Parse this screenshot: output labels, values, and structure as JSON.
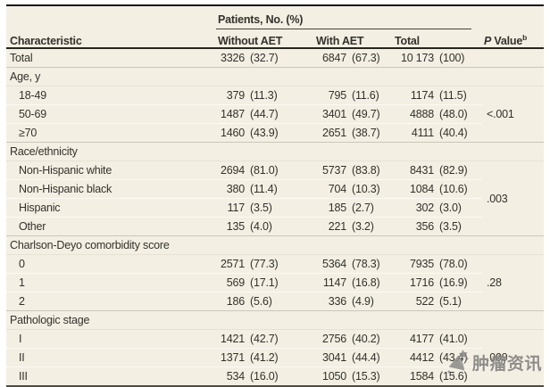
{
  "table": {
    "span_header": "Patients, No. (%)",
    "columns": {
      "characteristic": "Characteristic",
      "without": "Without AET",
      "with": "With AET",
      "total": "Total",
      "p_italic": "P",
      "p_rest": " Value",
      "p_sup": "b"
    },
    "total_row": {
      "label": "Total",
      "without": [
        "3326",
        "(32.7)"
      ],
      "with": [
        "6847",
        "(67.3)"
      ],
      "total": [
        "10 173",
        "(100)"
      ],
      "p": ""
    },
    "groups": [
      {
        "section": "Age, y",
        "p": "<.001",
        "rows": [
          {
            "label": "18-49",
            "without": [
              "379",
              "(11.3)"
            ],
            "with": [
              "795",
              "(11.6)"
            ],
            "total": [
              "1174",
              "(11.5)"
            ]
          },
          {
            "label": "50-69",
            "without": [
              "1487",
              "(44.7)"
            ],
            "with": [
              "3401",
              "(49.7)"
            ],
            "total": [
              "4888",
              "(48.0)"
            ]
          },
          {
            "label": "≥70",
            "without": [
              "1460",
              "(43.9)"
            ],
            "with": [
              "2651",
              "(38.7)"
            ],
            "total": [
              "4111",
              "(40.4)"
            ]
          }
        ]
      },
      {
        "section": "Race/ethnicity",
        "p": ".003",
        "rows": [
          {
            "label": "Non-Hispanic white",
            "without": [
              "2694",
              "(81.0)"
            ],
            "with": [
              "5737",
              "(83.8)"
            ],
            "total": [
              "8431",
              "(82.9)"
            ]
          },
          {
            "label": "Non-Hispanic black",
            "without": [
              "380",
              "(11.4)"
            ],
            "with": [
              "704",
              "(10.3)"
            ],
            "total": [
              "1084",
              "(10.6)"
            ]
          },
          {
            "label": "Hispanic",
            "without": [
              "117",
              "(3.5)"
            ],
            "with": [
              "185",
              "(2.7)"
            ],
            "total": [
              "302",
              "(3.0)"
            ]
          },
          {
            "label": "Other",
            "without": [
              "135",
              "(4.0)"
            ],
            "with": [
              "221",
              "(3.2)"
            ],
            "total": [
              "356",
              "(3.5)"
            ]
          }
        ]
      },
      {
        "section": "Charlson-Deyo comorbidity score",
        "p": ".28",
        "rows": [
          {
            "label": "0",
            "without": [
              "2571",
              "(77.3)"
            ],
            "with": [
              "5364",
              "(78.3)"
            ],
            "total": [
              "7935",
              "(78.0)"
            ]
          },
          {
            "label": "1",
            "without": [
              "569",
              "(17.1)"
            ],
            "with": [
              "1147",
              "(16.8)"
            ],
            "total": [
              "1716",
              "(16.9)"
            ]
          },
          {
            "label": "2",
            "without": [
              "186",
              "(5.6)"
            ],
            "with": [
              "336",
              "(4.9)"
            ],
            "total": [
              "522",
              "(5.1)"
            ]
          }
        ]
      },
      {
        "section": "Pathologic stage",
        "p": ".009",
        "rows": [
          {
            "label": "I",
            "without": [
              "1421",
              "(42.7)"
            ],
            "with": [
              "2756",
              "(40.2)"
            ],
            "total": [
              "4177",
              "(41.0)"
            ]
          },
          {
            "label": "II",
            "without": [
              "1371",
              "(41.2)"
            ],
            "with": [
              "3041",
              "(44.4)"
            ],
            "total": [
              "4412",
              "(43.4)"
            ]
          },
          {
            "label": "III",
            "without": [
              "534",
              "(16.0)"
            ],
            "with": [
              "1050",
              "(15.3)"
            ],
            "total": [
              "1584",
              "(15.6)"
            ]
          }
        ]
      }
    ]
  },
  "watermark": {
    "text": "肿瘤资讯",
    "icon": "megaphone-icon"
  },
  "colors": {
    "table_bg": "#f3efe3",
    "row_line": "#fbfaf4",
    "section_line": "#c9c6ba",
    "header_rule": "#26251e",
    "text": "#33312b",
    "watermark_gray": "#7e7d7a"
  }
}
